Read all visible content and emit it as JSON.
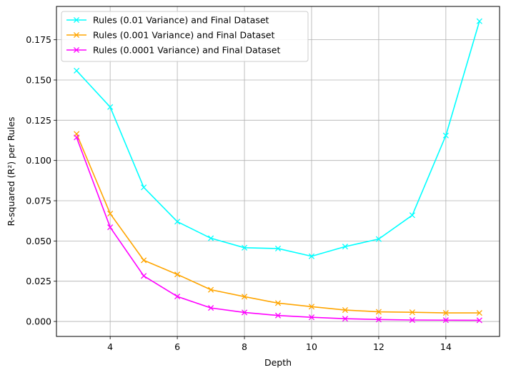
{
  "chart_data": {
    "type": "line",
    "xlabel": "Depth",
    "ylabel": "R-squared (R²) per Rules",
    "xlim": [
      2.4,
      15.6
    ],
    "ylim": [
      -0.0093,
      0.1957
    ],
    "x_ticks": [
      4,
      6,
      8,
      10,
      12,
      14
    ],
    "x_tick_labels": [
      "4",
      "6",
      "8",
      "10",
      "12",
      "14"
    ],
    "y_ticks": [
      0.0,
      0.025,
      0.05,
      0.075,
      0.1,
      0.125,
      0.15,
      0.175
    ],
    "y_tick_labels": [
      "0.000",
      "0.025",
      "0.050",
      "0.075",
      "0.100",
      "0.125",
      "0.150",
      "0.175"
    ],
    "grid": true,
    "legend_position": "upper-left",
    "marker": "x",
    "x": [
      3,
      4,
      5,
      6,
      7,
      8,
      9,
      10,
      11,
      12,
      13,
      14,
      15
    ],
    "series": [
      {
        "name": "Rules (0.01 Variance) and Final Dataset",
        "color": "#00ffff",
        "values": [
          0.1558,
          0.1332,
          0.0833,
          0.062,
          0.0517,
          0.0458,
          0.0453,
          0.0405,
          0.0465,
          0.0512,
          0.066,
          0.1155,
          0.1865
        ]
      },
      {
        "name": "Rules (0.001 Variance) and Final Dataset",
        "color": "#ffa500",
        "values": [
          0.1165,
          0.067,
          0.038,
          0.0292,
          0.0197,
          0.0154,
          0.0114,
          0.0092,
          0.0071,
          0.006,
          0.0057,
          0.0053,
          0.0053
        ]
      },
      {
        "name": "Rules (0.0001 Variance) and Final Dataset",
        "color": "#ff00ff",
        "values": [
          0.1143,
          0.0585,
          0.0283,
          0.0155,
          0.0084,
          0.0056,
          0.0037,
          0.0026,
          0.0017,
          0.0012,
          0.0009,
          0.0008,
          0.0007
        ]
      }
    ]
  }
}
